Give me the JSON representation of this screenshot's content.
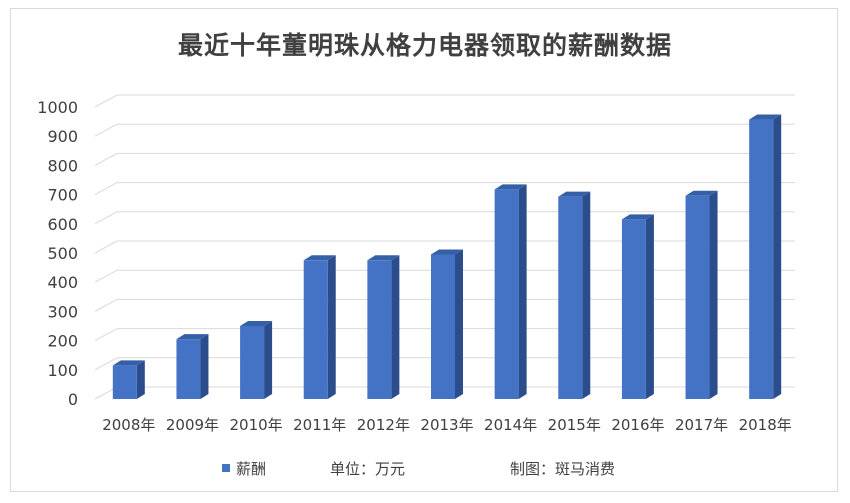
{
  "chart_data": {
    "type": "bar",
    "title": "最近十年董明珠从格力电器领取的薪酬数据",
    "categories": [
      "2008年",
      "2009年",
      "2010年",
      "2011年",
      "2012年",
      "2013年",
      "2014年",
      "2015年",
      "2016年",
      "2017年",
      "2018年"
    ],
    "series": [
      {
        "name": "薪酬",
        "values": [
          115,
          205,
          250,
          475,
          475,
          495,
          718,
          693,
          615,
          696,
          957
        ],
        "color": "#4472c4"
      }
    ],
    "ylim": [
      0,
      1000
    ],
    "yticks": [
      "0",
      "100",
      "200",
      "300",
      "400",
      "500",
      "600",
      "700",
      "800",
      "900",
      "1000"
    ],
    "grid": true,
    "legend_position": "bottom"
  },
  "footer": {
    "unit": "单位：万元",
    "credit": "制图：斑马消费"
  }
}
